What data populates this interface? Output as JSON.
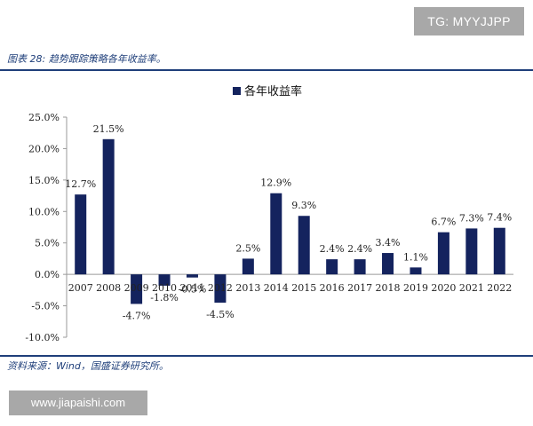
{
  "watermark_top": "TG: MYYJJPP",
  "figure_title": "图表 28:  趋势跟踪策略各年收益率。",
  "source": "资料来源：Wind，国盛证券研究所。",
  "watermark_bottom": "www.jiapaishi.com",
  "colors": {
    "bar": "#14235e",
    "rule": "#1f3f7a",
    "axis": "#9a9a9a"
  },
  "chart_data": {
    "type": "bar",
    "categories": [
      "2007",
      "2008",
      "2009",
      "2010",
      "2011",
      "2012",
      "2013",
      "2014",
      "2015",
      "2016",
      "2017",
      "2018",
      "2019",
      "2020",
      "2021",
      "2022"
    ],
    "series": [
      {
        "name": "各年收益率",
        "values": [
          12.7,
          21.5,
          -4.7,
          -1.8,
          -0.5,
          -4.5,
          2.5,
          12.9,
          9.3,
          2.4,
          2.4,
          3.4,
          1.1,
          6.7,
          7.3,
          7.4
        ]
      }
    ],
    "data_labels": [
      "12.7%",
      "21.5%",
      "-4.7%",
      "-1.8%",
      "-0.5%",
      "-4.5%",
      "2.5%",
      "12.9%",
      "9.3%",
      "2.4%",
      "2.4%",
      "3.4%",
      "1.1%",
      "6.7%",
      "7.3%",
      "7.4%"
    ],
    "y_ticks": [
      "25.0%",
      "20.0%",
      "15.0%",
      "10.0%",
      "5.0%",
      "0.0%",
      "-5.0%",
      "-10.0%"
    ],
    "ylim": [
      -10,
      25
    ],
    "legend_position": "top-center",
    "grid": false
  }
}
